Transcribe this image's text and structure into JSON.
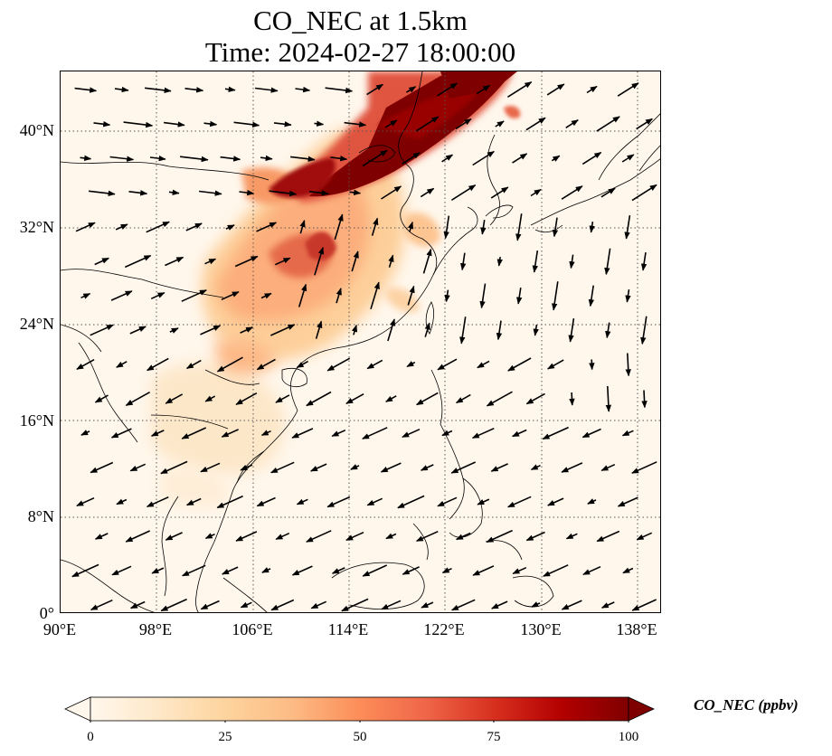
{
  "title_line1": "CO_NEC at 1.5km",
  "title_line2": "Time: 2024-02-27 18:00:00",
  "map": {
    "lon_range": [
      90,
      140
    ],
    "lat_range": [
      0,
      45
    ],
    "lat_ticks": [
      "0°",
      "8°N",
      "16°N",
      "24°N",
      "32°N",
      "40°N"
    ],
    "lon_ticks": [
      "90°E",
      "98°E",
      "106°E",
      "114°E",
      "122°E",
      "130°E",
      "138°E"
    ],
    "gridlines": "dotted",
    "high_concentration_plume": "Northern China extending northeast, values exceeding 100 ppbv",
    "wind_vectors": "northwesterly over eastern China, northeasterly monsoon flow over South China Sea and Southeast Asia, westerly over western China"
  },
  "colorbar": {
    "label": "CO_NEC (ppbv)",
    "ticks": [
      "0",
      "25",
      "50",
      "75",
      "100"
    ],
    "min": 0,
    "max": 100,
    "colormap": "OrRd",
    "colors": [
      "#fff7ec",
      "#fee8c8",
      "#fdd49e",
      "#fdbb84",
      "#fc8d59",
      "#ef6548",
      "#d7301f",
      "#b30000",
      "#7f0000"
    ],
    "extend": "both"
  }
}
